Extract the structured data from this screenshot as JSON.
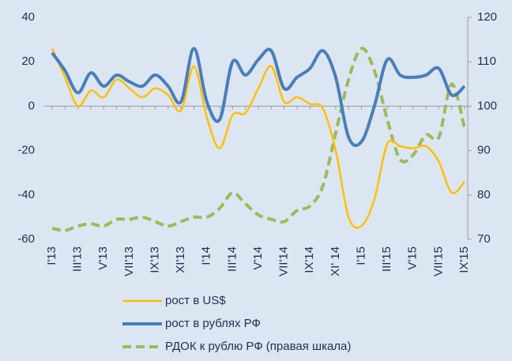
{
  "chart_data": {
    "type": "line",
    "categories": [
      "I'13",
      null,
      "III'13",
      null,
      "V'13",
      null,
      "VII'13",
      null,
      "IX'13",
      null,
      "XI'13",
      null,
      "I'14",
      null,
      "III'14",
      null,
      "V'14",
      null,
      "VII'14",
      null,
      "IX'14",
      null,
      "XI' 14",
      null,
      "I'15",
      null,
      "III'15",
      null,
      "V'15",
      null,
      "VII'15",
      null,
      "IX'15"
    ],
    "series": [
      {
        "name": "рост в US$",
        "color": "#ffc000",
        "dash": false,
        "values": [
          26,
          13,
          0,
          7,
          4,
          12,
          8,
          4,
          8,
          5,
          -2,
          18,
          -5,
          -19,
          -4,
          -3,
          8,
          18,
          2,
          4,
          1,
          -1,
          -20,
          -50,
          -54,
          -42,
          -17,
          -18,
          -19,
          -18,
          -25,
          -39,
          -34
        ]
      },
      {
        "name": "рост в рублях РФ",
        "color": "#4a7ebb",
        "dash": false,
        "values": [
          24,
          16,
          6,
          15,
          9,
          14,
          11,
          9,
          14,
          9,
          2,
          26,
          2,
          -6,
          20,
          14,
          21,
          25,
          8,
          13,
          17,
          25,
          13,
          -14,
          -16,
          0,
          21,
          14,
          13,
          14,
          17,
          5,
          9
        ]
      },
      {
        "name": "РДОК к рублю РФ (правая шкала)",
        "color": "#9bbb59",
        "dash": true,
        "axis": "y2",
        "values": [
          72.5,
          72,
          73,
          73.5,
          73,
          74.5,
          74.5,
          75,
          74,
          73,
          74,
          75,
          75,
          77,
          80.5,
          78,
          75.5,
          74.5,
          74,
          76.5,
          77.5,
          82,
          94,
          106,
          113,
          108,
          97,
          88,
          89,
          93.5,
          93,
          105,
          95
        ]
      }
    ],
    "ylim": [
      -60,
      40
    ],
    "yticks": [
      -60,
      -40,
      -20,
      0,
      20,
      40
    ],
    "y2lim": [
      70,
      120
    ],
    "y2ticks": [
      70,
      80,
      90,
      100,
      110,
      120
    ],
    "grid": false
  }
}
